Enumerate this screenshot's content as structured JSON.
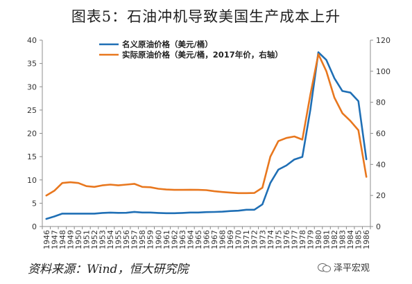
{
  "title": "图表5：石油冲机导致美国生产成本上升",
  "source": "资料来源：Wind，恒大研究院",
  "watermark": "泽平宏观",
  "watermark_icon": "wechat-icon",
  "chart_data": {
    "type": "line",
    "x": [
      1946,
      1947,
      1948,
      1949,
      1950,
      1951,
      1952,
      1953,
      1954,
      1955,
      1956,
      1957,
      1958,
      1959,
      1960,
      1961,
      1962,
      1963,
      1964,
      1965,
      1966,
      1967,
      1968,
      1969,
      1970,
      1971,
      1972,
      1973,
      1974,
      1975,
      1976,
      1977,
      1978,
      1979,
      1980,
      1981,
      1982,
      1983,
      1984,
      1985,
      1986
    ],
    "x_tick_labels": [
      "1946",
      "1947",
      "1948",
      "1949",
      "1950",
      "1951",
      "1952",
      "1953",
      "1954",
      "1955",
      "1956",
      "1957",
      "1958",
      "1959",
      "1960",
      "1961",
      "1962",
      "1963",
      "1964",
      "1965",
      "1966",
      "1967",
      "1968",
      "1969",
      "1970",
      "1971",
      "1972",
      "1973",
      "1974",
      "1975",
      "1976",
      "1977",
      "1978",
      "1979",
      "1980",
      "1981",
      "1982",
      "1983",
      "1984",
      "1985",
      "1986"
    ],
    "y_left_ticks": [
      "0",
      "5",
      "10",
      "15",
      "20",
      "25",
      "30",
      "35",
      "40"
    ],
    "y_right_ticks": [
      "0",
      "20",
      "40",
      "60",
      "80",
      "100",
      "120"
    ],
    "ylim_left": [
      0,
      40
    ],
    "ylim_right": [
      0,
      120
    ],
    "grid": false,
    "legend_position": "top-center",
    "series": [
      {
        "name": "名义原油价格（美元/桶）",
        "axis": "left",
        "color": "#1f6fb5",
        "values": [
          1.63,
          2.16,
          2.77,
          2.77,
          2.77,
          2.77,
          2.77,
          2.92,
          2.99,
          2.93,
          2.94,
          3.14,
          3.0,
          3.0,
          2.91,
          2.85,
          2.85,
          2.91,
          3.0,
          3.01,
          3.1,
          3.12,
          3.18,
          3.32,
          3.39,
          3.6,
          3.6,
          4.75,
          9.35,
          12.21,
          13.1,
          14.4,
          14.95,
          25.1,
          37.42,
          35.75,
          31.83,
          29.08,
          28.75,
          26.92,
          14.44
        ]
      },
      {
        "name": "实际原油价格（美元/桶，2017年价，右轴）",
        "axis": "right",
        "color": "#e8771e",
        "values": [
          20.0,
          23.0,
          28.0,
          28.5,
          28.0,
          26.0,
          25.5,
          26.5,
          27.0,
          26.5,
          27.0,
          27.5,
          25.5,
          25.3,
          24.3,
          23.8,
          23.6,
          23.6,
          23.7,
          23.6,
          23.4,
          22.7,
          22.2,
          21.8,
          21.5,
          21.5,
          21.6,
          25.0,
          45.0,
          55.0,
          57.0,
          58.0,
          56.0,
          85.0,
          111.0,
          100.0,
          83.0,
          73.0,
          68.0,
          62.0,
          32.0
        ]
      }
    ]
  }
}
